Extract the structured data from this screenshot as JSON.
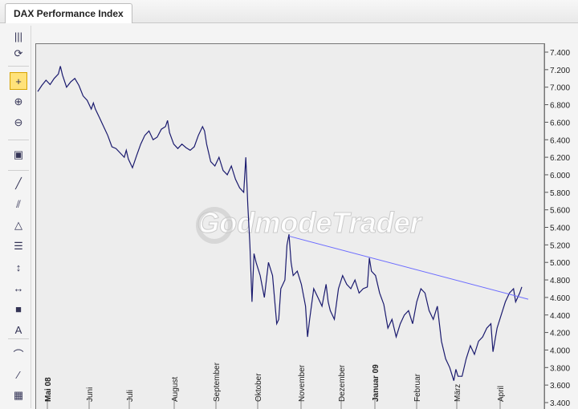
{
  "window": {
    "tab_title": "DAX Performance Index"
  },
  "toolbar": {
    "tools": [
      {
        "name": "menu-grip-icon",
        "glyph": "|||"
      },
      {
        "name": "refresh-icon",
        "glyph": "⟳"
      },
      {
        "name": "crosshair-icon",
        "glyph": "+",
        "active": true
      },
      {
        "name": "zoom-in-icon",
        "glyph": "⊕"
      },
      {
        "name": "zoom-out-icon",
        "glyph": "⊖"
      },
      {
        "name": "export-icon",
        "glyph": "▣"
      },
      {
        "name": "trendline-icon",
        "glyph": "╱"
      },
      {
        "name": "channel-icon",
        "glyph": "⫽"
      },
      {
        "name": "triangle-icon",
        "glyph": "△"
      },
      {
        "name": "fibonacci-icon",
        "glyph": "☰"
      },
      {
        "name": "vertical-line-icon",
        "glyph": "↕"
      },
      {
        "name": "horizontal-line-icon",
        "glyph": "↔"
      },
      {
        "name": "rectangle-icon",
        "glyph": "■"
      },
      {
        "name": "text-icon",
        "glyph": "A"
      },
      {
        "name": "arc-icon",
        "glyph": "⌒"
      },
      {
        "name": "ray-icon",
        "glyph": "∕"
      },
      {
        "name": "grid-icon",
        "glyph": "▦"
      }
    ]
  },
  "watermark": "GodmodeTrader",
  "colors": {
    "series": "#1a1a6e",
    "trendline": "#6b6bff",
    "background": "#ededed"
  },
  "chart_data": {
    "type": "line",
    "x_labels": [
      "Mai 08",
      "Juni",
      "Juli",
      "August",
      "September",
      "Oktober",
      "November",
      "Dezember",
      "Januar 09",
      "Februar",
      "März",
      "April"
    ],
    "bold_x_labels": [
      "Mai 08",
      "Januar 09"
    ],
    "y_ticks": [
      "7.400",
      "7.200",
      "7.000",
      "6.800",
      "6.600",
      "6.400",
      "6.200",
      "6.000",
      "5.800",
      "5.600",
      "5.400",
      "5.200",
      "5.000",
      "4.800",
      "4.600",
      "4.400",
      "4.200",
      "4.000",
      "3.800",
      "3.600",
      "3.400"
    ],
    "ylim": [
      3400,
      7500
    ],
    "xlim": [
      0,
      11.75
    ],
    "grid": false,
    "series": [
      {
        "points": [
          [
            0.0,
            6950
          ],
          [
            0.1,
            7020
          ],
          [
            0.2,
            7080
          ],
          [
            0.3,
            7030
          ],
          [
            0.4,
            7100
          ],
          [
            0.5,
            7150
          ],
          [
            0.55,
            7240
          ],
          [
            0.6,
            7140
          ],
          [
            0.7,
            7000
          ],
          [
            0.8,
            7060
          ],
          [
            0.9,
            7100
          ],
          [
            1.0,
            7020
          ],
          [
            1.1,
            6900
          ],
          [
            1.2,
            6850
          ],
          [
            1.3,
            6750
          ],
          [
            1.35,
            6820
          ],
          [
            1.4,
            6750
          ],
          [
            1.5,
            6650
          ],
          [
            1.6,
            6550
          ],
          [
            1.7,
            6450
          ],
          [
            1.8,
            6320
          ],
          [
            1.9,
            6300
          ],
          [
            2.0,
            6250
          ],
          [
            2.1,
            6200
          ],
          [
            2.15,
            6280
          ],
          [
            2.2,
            6180
          ],
          [
            2.3,
            6080
          ],
          [
            2.4,
            6220
          ],
          [
            2.5,
            6350
          ],
          [
            2.6,
            6450
          ],
          [
            2.7,
            6500
          ],
          [
            2.8,
            6400
          ],
          [
            2.9,
            6430
          ],
          [
            3.0,
            6520
          ],
          [
            3.1,
            6550
          ],
          [
            3.15,
            6620
          ],
          [
            3.2,
            6480
          ],
          [
            3.3,
            6350
          ],
          [
            3.4,
            6300
          ],
          [
            3.5,
            6350
          ],
          [
            3.6,
            6310
          ],
          [
            3.7,
            6280
          ],
          [
            3.8,
            6320
          ],
          [
            3.9,
            6450
          ],
          [
            4.0,
            6550
          ],
          [
            4.05,
            6500
          ],
          [
            4.1,
            6350
          ],
          [
            4.2,
            6150
          ],
          [
            4.3,
            6100
          ],
          [
            4.4,
            6200
          ],
          [
            4.5,
            6050
          ],
          [
            4.6,
            6000
          ],
          [
            4.7,
            6100
          ],
          [
            4.8,
            5950
          ],
          [
            4.9,
            5850
          ],
          [
            5.0,
            5800
          ],
          [
            5.05,
            6200
          ],
          [
            5.1,
            5650
          ],
          [
            5.15,
            5200
          ],
          [
            5.2,
            4550
          ],
          [
            5.25,
            5100
          ],
          [
            5.3,
            5000
          ],
          [
            5.4,
            4850
          ],
          [
            5.5,
            4600
          ],
          [
            5.6,
            5000
          ],
          [
            5.7,
            4850
          ],
          [
            5.8,
            4300
          ],
          [
            5.85,
            4350
          ],
          [
            5.9,
            4700
          ],
          [
            6.0,
            4800
          ],
          [
            6.05,
            5200
          ],
          [
            6.1,
            5320
          ],
          [
            6.15,
            5000
          ],
          [
            6.2,
            4850
          ],
          [
            6.3,
            4900
          ],
          [
            6.4,
            4750
          ],
          [
            6.5,
            4500
          ],
          [
            6.55,
            4150
          ],
          [
            6.6,
            4350
          ],
          [
            6.7,
            4700
          ],
          [
            6.8,
            4600
          ],
          [
            6.9,
            4500
          ],
          [
            7.0,
            4750
          ],
          [
            7.05,
            4550
          ],
          [
            7.1,
            4450
          ],
          [
            7.2,
            4350
          ],
          [
            7.3,
            4700
          ],
          [
            7.4,
            4850
          ],
          [
            7.5,
            4750
          ],
          [
            7.6,
            4700
          ],
          [
            7.7,
            4800
          ],
          [
            7.8,
            4650
          ],
          [
            7.9,
            4700
          ],
          [
            8.0,
            4720
          ],
          [
            8.05,
            5050
          ],
          [
            8.1,
            4900
          ],
          [
            8.2,
            4850
          ],
          [
            8.3,
            4650
          ],
          [
            8.4,
            4520
          ],
          [
            8.5,
            4250
          ],
          [
            8.6,
            4350
          ],
          [
            8.7,
            4150
          ],
          [
            8.8,
            4300
          ],
          [
            8.9,
            4400
          ],
          [
            9.0,
            4450
          ],
          [
            9.1,
            4300
          ],
          [
            9.2,
            4550
          ],
          [
            9.3,
            4700
          ],
          [
            9.4,
            4650
          ],
          [
            9.5,
            4450
          ],
          [
            9.6,
            4350
          ],
          [
            9.7,
            4500
          ],
          [
            9.8,
            4100
          ],
          [
            9.9,
            3900
          ],
          [
            10.0,
            3800
          ],
          [
            10.1,
            3650
          ],
          [
            10.15,
            3780
          ],
          [
            10.2,
            3700
          ],
          [
            10.3,
            3700
          ],
          [
            10.4,
            3900
          ],
          [
            10.5,
            4050
          ],
          [
            10.6,
            3950
          ],
          [
            10.7,
            4100
          ],
          [
            10.8,
            4150
          ],
          [
            10.9,
            4250
          ],
          [
            11.0,
            4300
          ],
          [
            11.05,
            3980
          ],
          [
            11.15,
            4250
          ],
          [
            11.25,
            4400
          ],
          [
            11.35,
            4550
          ],
          [
            11.45,
            4650
          ],
          [
            11.55,
            4700
          ],
          [
            11.6,
            4550
          ],
          [
            11.7,
            4650
          ],
          [
            11.75,
            4720
          ]
        ]
      }
    ],
    "trendline": {
      "from": [
        6.1,
        5300
      ],
      "to": [
        11.75,
        4580
      ]
    }
  }
}
